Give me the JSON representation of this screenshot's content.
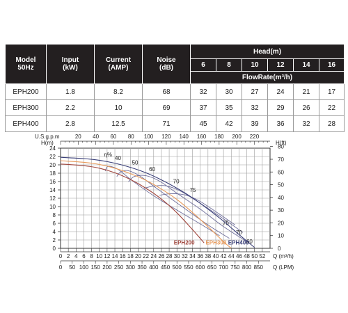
{
  "table": {
    "col_model": "Model\n50Hz",
    "col_input": "Input\n(kW)",
    "col_current": "Current\n(AMP)",
    "col_noise": "Noise\n(dB)",
    "head_label": "Head(m)",
    "head_values": [
      "6",
      "8",
      "10",
      "12",
      "14",
      "16"
    ],
    "flow_label": "FlowRate(m³/h)",
    "rows": [
      {
        "model": "EPH200",
        "input": "1.8",
        "current": "8.2",
        "noise": "68",
        "flows": [
          "32",
          "30",
          "27",
          "24",
          "21",
          "17"
        ]
      },
      {
        "model": "EPH300",
        "input": "2.2",
        "current": "10",
        "noise": "69",
        "flows": [
          "37",
          "35",
          "32",
          "29",
          "26",
          "22"
        ]
      },
      {
        "model": "EPH400",
        "input": "2.8",
        "current": "12.5",
        "noise": "71",
        "flows": [
          "45",
          "42",
          "39",
          "36",
          "32",
          "28"
        ]
      }
    ]
  },
  "chart_data": {
    "type": "line",
    "left_axis_label": "H(m)",
    "right_axis_label": "H(ft)",
    "top_axis_label": "U.S.g.p.m",
    "bottom_axis_label_m3h": "Q (m³/h)",
    "bottom_axis_label_lpm": "Q (LPM)",
    "efficiency_label": "η%",
    "y_m_range": [
      0,
      24
    ],
    "y_m_ticks": [
      "0",
      "2",
      "4",
      "6",
      "8",
      "10",
      "12",
      "14",
      "16",
      "18",
      "20",
      "22",
      "24"
    ],
    "y_ft_ticks": [
      "0",
      "10",
      "20",
      "30",
      "40",
      "50",
      "60",
      "70",
      "80"
    ],
    "x_m3h_range": [
      0,
      54
    ],
    "x_m3h_ticks": [
      "0",
      "2",
      "4",
      "6",
      "8",
      "10",
      "12",
      "14",
      "16",
      "18",
      "20",
      "22",
      "24",
      "26",
      "28",
      "30",
      "32",
      "34",
      "36",
      "38",
      "40",
      "42",
      "44",
      "46",
      "48",
      "50",
      "52"
    ],
    "x_lpm_ticks": [
      "0",
      "50",
      "100",
      "150",
      "200",
      "250",
      "300",
      "350",
      "400",
      "450",
      "500",
      "550",
      "600",
      "650",
      "700",
      "750",
      "800",
      "850"
    ],
    "x_gpm_ticks": [
      "20",
      "40",
      "60",
      "80",
      "100",
      "120",
      "140",
      "160",
      "180",
      "200",
      "220"
    ],
    "grid": true,
    "series": [
      {
        "name": "EPH200",
        "color": "#a0453c",
        "x": [
          0,
          6,
          10,
          14,
          18,
          22,
          26,
          30,
          34,
          37
        ],
        "y": [
          20.2,
          19.8,
          19.2,
          18.1,
          16.5,
          14.4,
          11.8,
          8.5,
          4.5,
          1.3
        ]
      },
      {
        "name": "EPH300",
        "color": "#e89a5a",
        "x": [
          0,
          6,
          10,
          14,
          18,
          22,
          26,
          30,
          34,
          38,
          42,
          44
        ],
        "y": [
          21,
          20.6,
          20.1,
          19.2,
          17.9,
          16.3,
          14.2,
          11.7,
          8.6,
          5.2,
          1.6,
          0
        ]
      },
      {
        "name": "EPH400",
        "color": "#3a3f78",
        "x": [
          0,
          6,
          10,
          14,
          18,
          22,
          26,
          30,
          34,
          38,
          42,
          46,
          50
        ],
        "y": [
          21.8,
          21.5,
          21.1,
          20.4,
          19.4,
          18.1,
          16.4,
          14.4,
          12.1,
          9.4,
          6.5,
          3.3,
          0.2
        ]
      }
    ],
    "efficiency_curves": [
      {
        "label": "40",
        "label_at": [
          14,
          21.2
        ],
        "x": [
          11.5,
          12,
          13,
          15,
          18.5,
          24,
          31,
          37,
          41
        ],
        "y": [
          18.5,
          19.5,
          19.6,
          18.8,
          16.2,
          12.6,
          8.6,
          5.3,
          3.0
        ]
      },
      {
        "label": "50",
        "label_at": [
          18.4,
          20.1
        ],
        "x": [
          14.5,
          15.5,
          17.5,
          20.5,
          25,
          31,
          38,
          43.5
        ],
        "y": [
          17.2,
          18.3,
          18.6,
          17.3,
          14.2,
          10.2,
          5.6,
          2.4
        ]
      },
      {
        "label": "60",
        "label_at": [
          22.8,
          18.5
        ],
        "x": [
          17.5,
          19,
          22,
          25.5,
          30,
          36,
          42,
          48
        ],
        "y": [
          15.9,
          17.2,
          17.4,
          16.1,
          13.2,
          9.4,
          5.2,
          1.6
        ]
      },
      {
        "label": "70",
        "label_at": [
          29,
          15.6
        ],
        "x": [
          21.5,
          24,
          27,
          30.5,
          35,
          41,
          47
        ],
        "y": [
          14.4,
          14.9,
          15,
          13.9,
          11.4,
          7.7,
          3.8
        ]
      },
      {
        "label": "75",
        "label_at": [
          33.3,
          13.5
        ],
        "x": [
          25.5,
          28.5,
          32,
          35.5,
          40,
          45
        ],
        "y": [
          12.7,
          13.1,
          12.8,
          11.5,
          8.8,
          5.6
        ]
      }
    ],
    "efficiency_labels_lower": [
      {
        "label": "75",
        "at": [
          41.8,
          5.6
        ]
      },
      {
        "label": "70",
        "at": [
          45.2,
          3.3
        ]
      },
      {
        "label": "60",
        "at": [
          47.9,
          1.2
        ]
      }
    ]
  }
}
